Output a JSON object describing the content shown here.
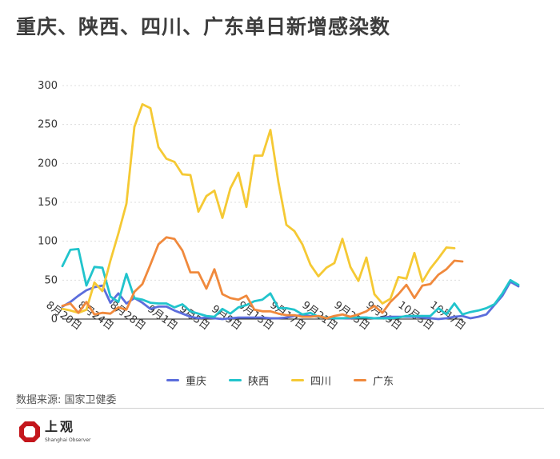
{
  "title": "重庆、陕西、四川、广东单日新增感染数",
  "source": "数据来源: 国家卫健委",
  "logo": {
    "cn": "上观",
    "en": "Shanghai Observer"
  },
  "colors": {
    "重庆": "#5b6ddc",
    "陕西": "#21c4cc",
    "四川": "#f5c934",
    "广东": "#f0893c"
  },
  "chart_data": {
    "type": "line",
    "title": "重庆、陕西、四川、广东单日新增感染数",
    "xlabel": "",
    "ylabel": "",
    "ylim": [
      0,
      300
    ],
    "yticks": [
      0,
      50,
      100,
      150,
      200,
      250,
      300
    ],
    "x_tick_labels": [
      "8月20日",
      "8月24日",
      "8月28日",
      "9月1日",
      "9月5日",
      "9月9日",
      "9月13日",
      "9月17日",
      "9月21日",
      "9月25日",
      "9月29日",
      "10月3日",
      "10月7日"
    ],
    "x_tick_interval_days": 4,
    "x_start": "8月18日",
    "series": [
      {
        "name": "重庆",
        "values": [
          16,
          22,
          30,
          37,
          41,
          43,
          21,
          33,
          20,
          27,
          21,
          13,
          16,
          16,
          11,
          7,
          3,
          1,
          2,
          1,
          0,
          1,
          2,
          2,
          2,
          2,
          1,
          1,
          2,
          4,
          5,
          4,
          3,
          2,
          1,
          1,
          1,
          2,
          2,
          1,
          2,
          3,
          3,
          3,
          3,
          2,
          1,
          0,
          1,
          3,
          4,
          1,
          3,
          6,
          18,
          30,
          48,
          42
        ]
      },
      {
        "name": "陕西",
        "values": [
          68,
          89,
          90,
          43,
          67,
          66,
          29,
          22,
          58,
          27,
          25,
          21,
          20,
          20,
          15,
          19,
          10,
          7,
          4,
          3,
          13,
          7,
          15,
          18,
          23,
          25,
          33,
          14,
          14,
          12,
          6,
          8,
          3,
          2,
          1,
          1,
          2,
          2,
          2,
          1,
          1,
          1,
          2,
          4,
          4,
          4,
          4,
          14,
          6,
          20,
          6,
          9,
          11,
          14,
          19,
          33,
          50,
          44
        ]
      },
      {
        "name": "四川",
        "values": [
          13,
          11,
          8,
          12,
          47,
          36,
          75,
          110,
          148,
          247,
          276,
          271,
          221,
          206,
          202,
          186,
          185,
          138,
          158,
          165,
          130,
          168,
          188,
          144,
          210,
          210,
          243,
          176,
          121,
          113,
          96,
          70,
          55,
          66,
          72,
          103,
          67,
          49,
          79,
          32,
          20,
          26,
          54,
          52,
          85,
          48,
          65,
          78,
          92,
          91
        ]
      },
      {
        "name": "广东",
        "values": [
          17,
          20,
          8,
          22,
          6,
          8,
          7,
          15,
          12,
          35,
          45,
          70,
          96,
          105,
          103,
          88,
          60,
          60,
          39,
          64,
          32,
          27,
          25,
          30,
          12,
          10,
          10,
          7,
          5,
          5,
          3,
          3,
          4,
          1,
          4,
          6,
          3,
          6,
          10,
          17,
          8,
          22,
          32,
          44,
          27,
          43,
          45,
          57,
          64,
          75,
          74
        ]
      }
    ]
  }
}
